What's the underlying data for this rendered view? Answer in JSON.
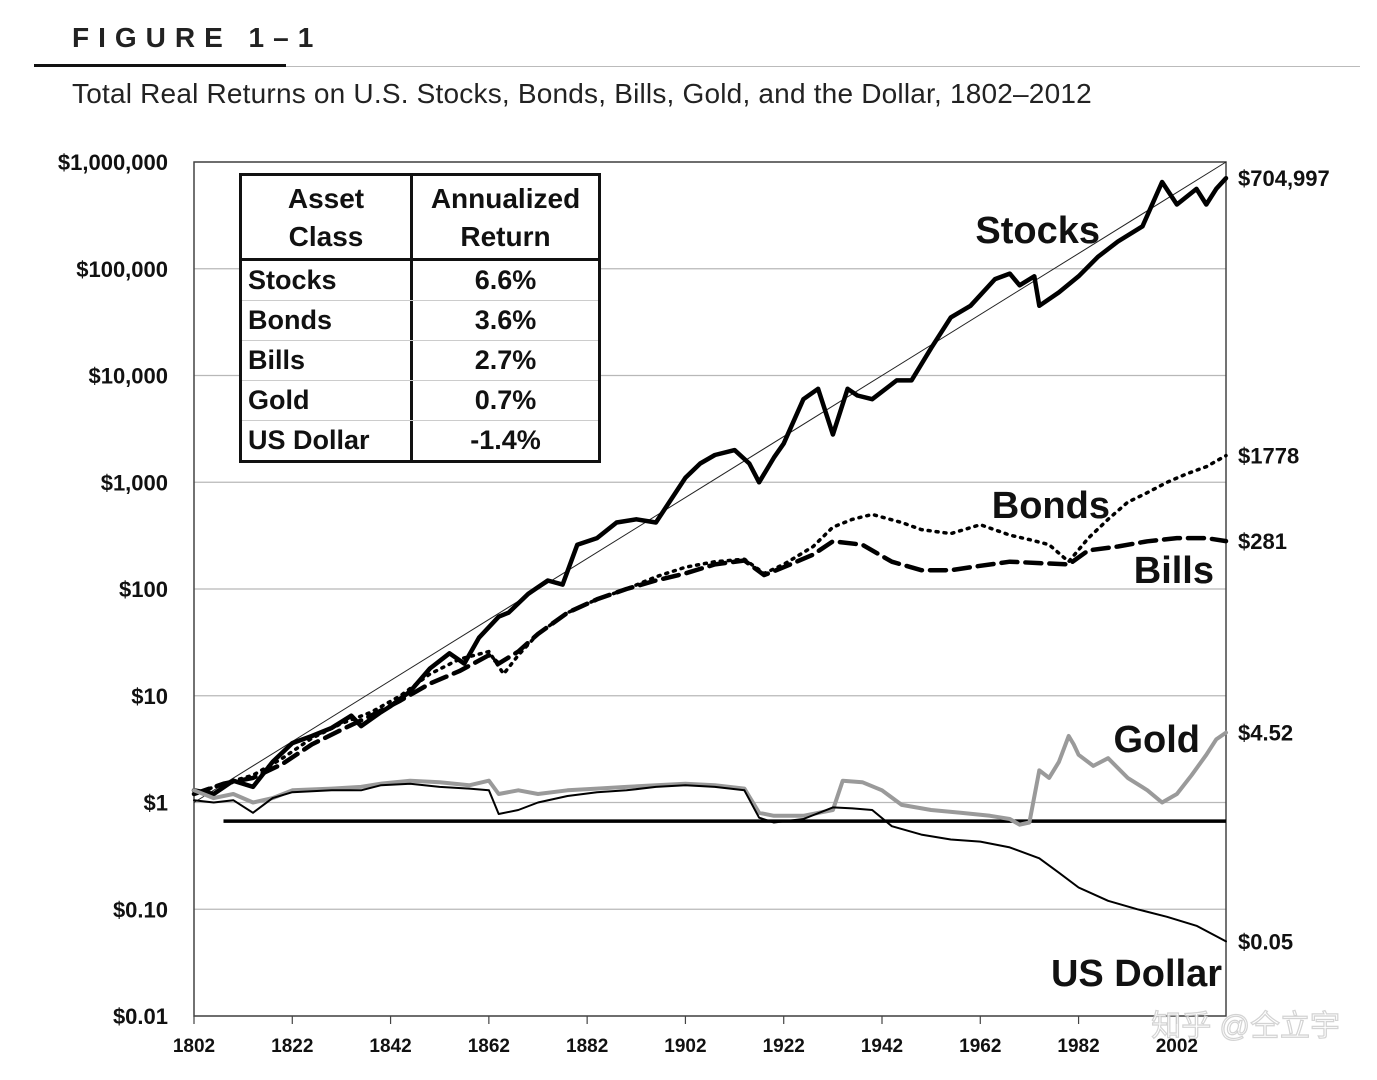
{
  "figure_label": "FIGURE 1–1",
  "subtitle": "Total Real Returns on U.S. Stocks, Bonds, Bills, Gold, and the Dollar, 1802–2012",
  "table": {
    "header_col1_line1": "Asset",
    "header_col1_line2": "Class",
    "header_col2_line1": "Annualized",
    "header_col2_line2": "Return",
    "rows": [
      {
        "asset": "Stocks",
        "ret": "6.6%"
      },
      {
        "asset": "Bonds",
        "ret": "3.6%"
      },
      {
        "asset": "Bills",
        "ret": "2.7%"
      },
      {
        "asset": "Gold",
        "ret": "0.7%"
      },
      {
        "asset": "US Dollar",
        "ret": "-1.4%"
      }
    ]
  },
  "colors": {
    "stocks": "#000000",
    "bonds": "#000000",
    "bills": "#000000",
    "gold": "#9a9a9a",
    "dollar": "#000000",
    "grid": "#b8b8b8"
  },
  "chart_data": {
    "type": "line",
    "yscale": "log",
    "ylim": [
      0.01,
      1000000
    ],
    "xlim": [
      1802,
      2012
    ],
    "y_tick_values": [
      0.01,
      0.1,
      1,
      10,
      100,
      1000,
      10000,
      100000,
      1000000
    ],
    "y_tick_labels": [
      "$0.01",
      "$0.10",
      "$1",
      "$10",
      "$100",
      "$1,000",
      "$10,000",
      "$100,000",
      "$1,000,000"
    ],
    "x_tick_values": [
      1802,
      1822,
      1842,
      1862,
      1882,
      1902,
      1922,
      1942,
      1962,
      1982,
      2002
    ],
    "x_tick_labels": [
      "1802",
      "1822",
      "1842",
      "1862",
      "1882",
      "1902",
      "1922",
      "1942",
      "1962",
      "1982",
      "2002"
    ],
    "end_labels": [
      {
        "series": "Stocks",
        "text": "$704,997",
        "value": 704997
      },
      {
        "series": "Bonds",
        "text": "$1778",
        "value": 1778
      },
      {
        "series": "Bills",
        "text": "$281",
        "value": 281
      },
      {
        "series": "Gold",
        "text": "$4.52",
        "value": 4.52
      },
      {
        "series": "US Dollar",
        "text": "$0.05",
        "value": 0.05
      }
    ],
    "series_labels": [
      {
        "series": "Stocks",
        "text": "Stocks"
      },
      {
        "series": "Bonds",
        "text": "Bonds"
      },
      {
        "series": "Bills",
        "text": "Bills"
      },
      {
        "series": "Gold",
        "text": "Gold"
      },
      {
        "series": "US Dollar",
        "text": "US Dollar"
      }
    ],
    "trend_line": {
      "from": [
        1802,
        1
      ],
      "to": [
        2012,
        1000000
      ]
    },
    "reference_line": {
      "value": 0.67,
      "from_x": 1808,
      "to_x": 2012
    },
    "series": [
      {
        "name": "Stocks",
        "style": "solid-thick",
        "points": [
          [
            1802,
            1.3
          ],
          [
            1806,
            1.2
          ],
          [
            1810,
            1.6
          ],
          [
            1814,
            1.4
          ],
          [
            1818,
            2.4
          ],
          [
            1822,
            3.6
          ],
          [
            1826,
            4.2
          ],
          [
            1830,
            5
          ],
          [
            1834,
            6.5
          ],
          [
            1836,
            5.2
          ],
          [
            1840,
            7
          ],
          [
            1842,
            8
          ],
          [
            1846,
            11
          ],
          [
            1850,
            18
          ],
          [
            1854,
            25
          ],
          [
            1857,
            20
          ],
          [
            1860,
            35
          ],
          [
            1864,
            55
          ],
          [
            1866,
            60
          ],
          [
            1870,
            90
          ],
          [
            1874,
            120
          ],
          [
            1877,
            110
          ],
          [
            1880,
            260
          ],
          [
            1884,
            300
          ],
          [
            1888,
            420
          ],
          [
            1892,
            450
          ],
          [
            1896,
            420
          ],
          [
            1900,
            800
          ],
          [
            1902,
            1100
          ],
          [
            1905,
            1500
          ],
          [
            1908,
            1800
          ],
          [
            1912,
            2000
          ],
          [
            1915,
            1500
          ],
          [
            1917,
            1000
          ],
          [
            1920,
            1700
          ],
          [
            1922,
            2300
          ],
          [
            1926,
            6000
          ],
          [
            1929,
            7500
          ],
          [
            1932,
            2800
          ],
          [
            1935,
            7500
          ],
          [
            1937,
            6500
          ],
          [
            1940,
            6000
          ],
          [
            1945,
            9000
          ],
          [
            1948,
            9000
          ],
          [
            1952,
            18000
          ],
          [
            1956,
            35000
          ],
          [
            1960,
            45000
          ],
          [
            1965,
            80000
          ],
          [
            1968,
            90000
          ],
          [
            1970,
            70000
          ],
          [
            1973,
            85000
          ],
          [
            1974,
            45000
          ],
          [
            1978,
            60000
          ],
          [
            1982,
            85000
          ],
          [
            1986,
            130000
          ],
          [
            1990,
            180000
          ],
          [
            1995,
            250000
          ],
          [
            1999,
            650000
          ],
          [
            2002,
            400000
          ],
          [
            2006,
            560000
          ],
          [
            2008,
            400000
          ],
          [
            2010,
            560000
          ],
          [
            2012,
            704997
          ]
        ]
      },
      {
        "name": "Bonds",
        "style": "dotted",
        "points": [
          [
            1802,
            1.2
          ],
          [
            1808,
            1.5
          ],
          [
            1814,
            1.8
          ],
          [
            1820,
            2.6
          ],
          [
            1826,
            4
          ],
          [
            1832,
            5.5
          ],
          [
            1838,
            7
          ],
          [
            1844,
            10
          ],
          [
            1850,
            16
          ],
          [
            1856,
            22
          ],
          [
            1862,
            26
          ],
          [
            1865,
            16
          ],
          [
            1868,
            24
          ],
          [
            1872,
            38
          ],
          [
            1878,
            60
          ],
          [
            1884,
            80
          ],
          [
            1890,
            100
          ],
          [
            1896,
            130
          ],
          [
            1902,
            160
          ],
          [
            1908,
            180
          ],
          [
            1914,
            190
          ],
          [
            1918,
            140
          ],
          [
            1922,
            170
          ],
          [
            1928,
            250
          ],
          [
            1932,
            380
          ],
          [
            1936,
            450
          ],
          [
            1940,
            500
          ],
          [
            1946,
            420
          ],
          [
            1950,
            360
          ],
          [
            1956,
            330
          ],
          [
            1962,
            400
          ],
          [
            1968,
            320
          ],
          [
            1972,
            290
          ],
          [
            1976,
            260
          ],
          [
            1980,
            180
          ],
          [
            1984,
            300
          ],
          [
            1988,
            450
          ],
          [
            1992,
            650
          ],
          [
            1996,
            800
          ],
          [
            2000,
            1000
          ],
          [
            2004,
            1200
          ],
          [
            2008,
            1400
          ],
          [
            2012,
            1778
          ]
        ]
      },
      {
        "name": "Bills",
        "style": "dashed",
        "points": [
          [
            1802,
            1.2
          ],
          [
            1808,
            1.5
          ],
          [
            1814,
            1.7
          ],
          [
            1820,
            2.3
          ],
          [
            1826,
            3.5
          ],
          [
            1832,
            4.8
          ],
          [
            1838,
            6.5
          ],
          [
            1844,
            9
          ],
          [
            1850,
            13
          ],
          [
            1856,
            17
          ],
          [
            1862,
            24
          ],
          [
            1864,
            20
          ],
          [
            1868,
            26
          ],
          [
            1872,
            38
          ],
          [
            1878,
            60
          ],
          [
            1884,
            80
          ],
          [
            1890,
            100
          ],
          [
            1896,
            120
          ],
          [
            1902,
            140
          ],
          [
            1908,
            170
          ],
          [
            1914,
            185
          ],
          [
            1918,
            135
          ],
          [
            1922,
            160
          ],
          [
            1928,
            210
          ],
          [
            1932,
            280
          ],
          [
            1938,
            260
          ],
          [
            1944,
            180
          ],
          [
            1950,
            150
          ],
          [
            1956,
            150
          ],
          [
            1962,
            165
          ],
          [
            1968,
            180
          ],
          [
            1974,
            175
          ],
          [
            1980,
            170
          ],
          [
            1984,
            230
          ],
          [
            1990,
            250
          ],
          [
            1996,
            280
          ],
          [
            2002,
            300
          ],
          [
            2008,
            300
          ],
          [
            2012,
            281
          ]
        ]
      },
      {
        "name": "Gold",
        "style": "solid-gray",
        "points": [
          [
            1802,
            1.3
          ],
          [
            1806,
            1.1
          ],
          [
            1810,
            1.2
          ],
          [
            1814,
            1
          ],
          [
            1818,
            1.1
          ],
          [
            1822,
            1.3
          ],
          [
            1830,
            1.35
          ],
          [
            1836,
            1.4
          ],
          [
            1840,
            1.5
          ],
          [
            1846,
            1.6
          ],
          [
            1852,
            1.55
          ],
          [
            1858,
            1.45
          ],
          [
            1862,
            1.6
          ],
          [
            1864,
            1.2
          ],
          [
            1868,
            1.3
          ],
          [
            1872,
            1.2
          ],
          [
            1878,
            1.3
          ],
          [
            1884,
            1.35
          ],
          [
            1890,
            1.4
          ],
          [
            1896,
            1.45
          ],
          [
            1902,
            1.5
          ],
          [
            1908,
            1.45
          ],
          [
            1914,
            1.35
          ],
          [
            1917,
            0.8
          ],
          [
            1920,
            0.75
          ],
          [
            1926,
            0.75
          ],
          [
            1932,
            0.85
          ],
          [
            1934,
            1.6
          ],
          [
            1938,
            1.55
          ],
          [
            1942,
            1.3
          ],
          [
            1946,
            0.95
          ],
          [
            1952,
            0.85
          ],
          [
            1958,
            0.8
          ],
          [
            1964,
            0.75
          ],
          [
            1968,
            0.7
          ],
          [
            1970,
            0.62
          ],
          [
            1972,
            0.65
          ],
          [
            1974,
            2
          ],
          [
            1976,
            1.7
          ],
          [
            1978,
            2.4
          ],
          [
            1980,
            4.2
          ],
          [
            1981,
            3.5
          ],
          [
            1982,
            2.8
          ],
          [
            1985,
            2.2
          ],
          [
            1988,
            2.6
          ],
          [
            1992,
            1.7
          ],
          [
            1996,
            1.3
          ],
          [
            1999,
            1
          ],
          [
            2002,
            1.2
          ],
          [
            2005,
            1.8
          ],
          [
            2008,
            2.8
          ],
          [
            2010,
            3.9
          ],
          [
            2012,
            4.52
          ]
        ]
      },
      {
        "name": "US Dollar",
        "style": "solid-thin",
        "points": [
          [
            1802,
            1.05
          ],
          [
            1806,
            1
          ],
          [
            1810,
            1.05
          ],
          [
            1814,
            0.8
          ],
          [
            1818,
            1.1
          ],
          [
            1822,
            1.25
          ],
          [
            1830,
            1.3
          ],
          [
            1836,
            1.3
          ],
          [
            1840,
            1.45
          ],
          [
            1846,
            1.5
          ],
          [
            1852,
            1.4
          ],
          [
            1858,
            1.35
          ],
          [
            1862,
            1.3
          ],
          [
            1864,
            0.78
          ],
          [
            1868,
            0.85
          ],
          [
            1872,
            1
          ],
          [
            1878,
            1.15
          ],
          [
            1884,
            1.25
          ],
          [
            1890,
            1.3
          ],
          [
            1896,
            1.4
          ],
          [
            1902,
            1.45
          ],
          [
            1908,
            1.4
          ],
          [
            1914,
            1.3
          ],
          [
            1917,
            0.72
          ],
          [
            1920,
            0.65
          ],
          [
            1926,
            0.7
          ],
          [
            1932,
            0.9
          ],
          [
            1936,
            0.88
          ],
          [
            1940,
            0.85
          ],
          [
            1944,
            0.6
          ],
          [
            1950,
            0.5
          ],
          [
            1956,
            0.45
          ],
          [
            1962,
            0.43
          ],
          [
            1968,
            0.38
          ],
          [
            1974,
            0.3
          ],
          [
            1978,
            0.22
          ],
          [
            1982,
            0.16
          ],
          [
            1988,
            0.12
          ],
          [
            1994,
            0.1
          ],
          [
            2000,
            0.085
          ],
          [
            2006,
            0.07
          ],
          [
            2012,
            0.05
          ]
        ]
      }
    ]
  },
  "watermark": "知乎 @仝立宇"
}
